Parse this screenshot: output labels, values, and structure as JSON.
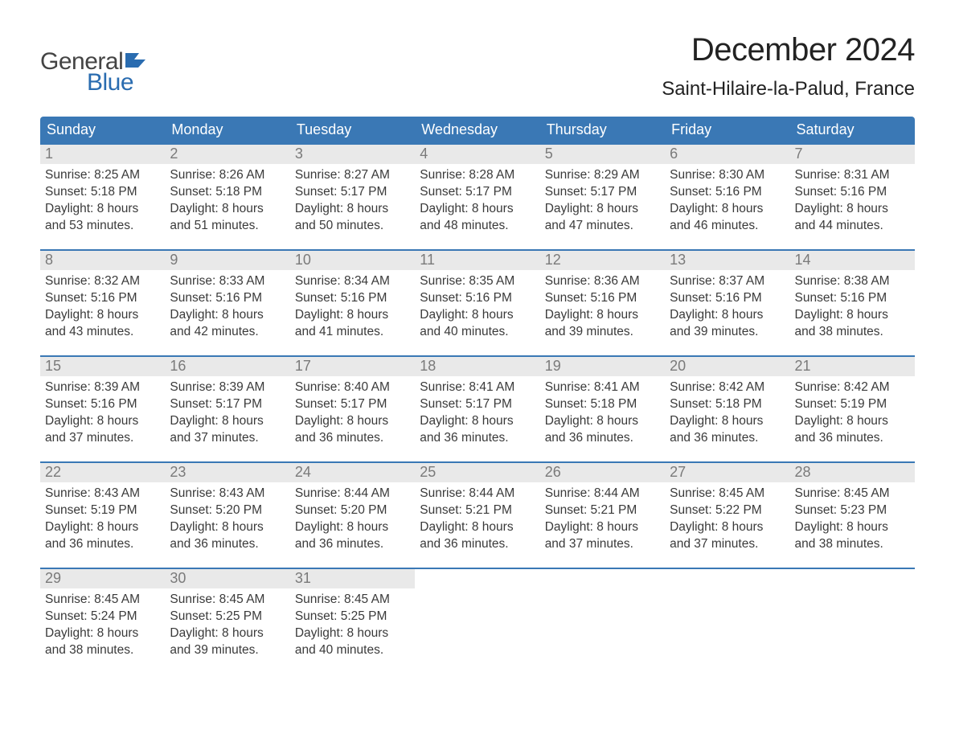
{
  "brand": {
    "text_general": "General",
    "text_blue": "Blue",
    "flag_color": "#2a6cb0",
    "text_general_color": "#444444"
  },
  "header": {
    "month_title": "December 2024",
    "location": "Saint-Hilaire-la-Palud, France",
    "title_color": "#222222",
    "title_fontsize": 40,
    "location_fontsize": 24
  },
  "calendar": {
    "type": "table",
    "header_bg": "#3a78b5",
    "header_text_color": "#ffffff",
    "row_separator_color": "#3a78b5",
    "daynum_bg": "#e9e9e9",
    "daynum_color": "#7a7a7a",
    "content_color": "#3a3a3a",
    "content_fontsize": 15.5,
    "weekdays": [
      "Sunday",
      "Monday",
      "Tuesday",
      "Wednesday",
      "Thursday",
      "Friday",
      "Saturday"
    ],
    "weeks": [
      [
        {
          "day": 1,
          "sunrise": "8:25 AM",
          "sunset": "5:18 PM",
          "daylight": "8 hours and 53 minutes."
        },
        {
          "day": 2,
          "sunrise": "8:26 AM",
          "sunset": "5:18 PM",
          "daylight": "8 hours and 51 minutes."
        },
        {
          "day": 3,
          "sunrise": "8:27 AM",
          "sunset": "5:17 PM",
          "daylight": "8 hours and 50 minutes."
        },
        {
          "day": 4,
          "sunrise": "8:28 AM",
          "sunset": "5:17 PM",
          "daylight": "8 hours and 48 minutes."
        },
        {
          "day": 5,
          "sunrise": "8:29 AM",
          "sunset": "5:17 PM",
          "daylight": "8 hours and 47 minutes."
        },
        {
          "day": 6,
          "sunrise": "8:30 AM",
          "sunset": "5:16 PM",
          "daylight": "8 hours and 46 minutes."
        },
        {
          "day": 7,
          "sunrise": "8:31 AM",
          "sunset": "5:16 PM",
          "daylight": "8 hours and 44 minutes."
        }
      ],
      [
        {
          "day": 8,
          "sunrise": "8:32 AM",
          "sunset": "5:16 PM",
          "daylight": "8 hours and 43 minutes."
        },
        {
          "day": 9,
          "sunrise": "8:33 AM",
          "sunset": "5:16 PM",
          "daylight": "8 hours and 42 minutes."
        },
        {
          "day": 10,
          "sunrise": "8:34 AM",
          "sunset": "5:16 PM",
          "daylight": "8 hours and 41 minutes."
        },
        {
          "day": 11,
          "sunrise": "8:35 AM",
          "sunset": "5:16 PM",
          "daylight": "8 hours and 40 minutes."
        },
        {
          "day": 12,
          "sunrise": "8:36 AM",
          "sunset": "5:16 PM",
          "daylight": "8 hours and 39 minutes."
        },
        {
          "day": 13,
          "sunrise": "8:37 AM",
          "sunset": "5:16 PM",
          "daylight": "8 hours and 39 minutes."
        },
        {
          "day": 14,
          "sunrise": "8:38 AM",
          "sunset": "5:16 PM",
          "daylight": "8 hours and 38 minutes."
        }
      ],
      [
        {
          "day": 15,
          "sunrise": "8:39 AM",
          "sunset": "5:16 PM",
          "daylight": "8 hours and 37 minutes."
        },
        {
          "day": 16,
          "sunrise": "8:39 AM",
          "sunset": "5:17 PM",
          "daylight": "8 hours and 37 minutes."
        },
        {
          "day": 17,
          "sunrise": "8:40 AM",
          "sunset": "5:17 PM",
          "daylight": "8 hours and 36 minutes."
        },
        {
          "day": 18,
          "sunrise": "8:41 AM",
          "sunset": "5:17 PM",
          "daylight": "8 hours and 36 minutes."
        },
        {
          "day": 19,
          "sunrise": "8:41 AM",
          "sunset": "5:18 PM",
          "daylight": "8 hours and 36 minutes."
        },
        {
          "day": 20,
          "sunrise": "8:42 AM",
          "sunset": "5:18 PM",
          "daylight": "8 hours and 36 minutes."
        },
        {
          "day": 21,
          "sunrise": "8:42 AM",
          "sunset": "5:19 PM",
          "daylight": "8 hours and 36 minutes."
        }
      ],
      [
        {
          "day": 22,
          "sunrise": "8:43 AM",
          "sunset": "5:19 PM",
          "daylight": "8 hours and 36 minutes."
        },
        {
          "day": 23,
          "sunrise": "8:43 AM",
          "sunset": "5:20 PM",
          "daylight": "8 hours and 36 minutes."
        },
        {
          "day": 24,
          "sunrise": "8:44 AM",
          "sunset": "5:20 PM",
          "daylight": "8 hours and 36 minutes."
        },
        {
          "day": 25,
          "sunrise": "8:44 AM",
          "sunset": "5:21 PM",
          "daylight": "8 hours and 36 minutes."
        },
        {
          "day": 26,
          "sunrise": "8:44 AM",
          "sunset": "5:21 PM",
          "daylight": "8 hours and 37 minutes."
        },
        {
          "day": 27,
          "sunrise": "8:45 AM",
          "sunset": "5:22 PM",
          "daylight": "8 hours and 37 minutes."
        },
        {
          "day": 28,
          "sunrise": "8:45 AM",
          "sunset": "5:23 PM",
          "daylight": "8 hours and 38 minutes."
        }
      ],
      [
        {
          "day": 29,
          "sunrise": "8:45 AM",
          "sunset": "5:24 PM",
          "daylight": "8 hours and 38 minutes."
        },
        {
          "day": 30,
          "sunrise": "8:45 AM",
          "sunset": "5:25 PM",
          "daylight": "8 hours and 39 minutes."
        },
        {
          "day": 31,
          "sunrise": "8:45 AM",
          "sunset": "5:25 PM",
          "daylight": "8 hours and 40 minutes."
        },
        null,
        null,
        null,
        null
      ]
    ],
    "labels": {
      "sunrise_prefix": "Sunrise: ",
      "sunset_prefix": "Sunset: ",
      "daylight_prefix": "Daylight: "
    }
  }
}
